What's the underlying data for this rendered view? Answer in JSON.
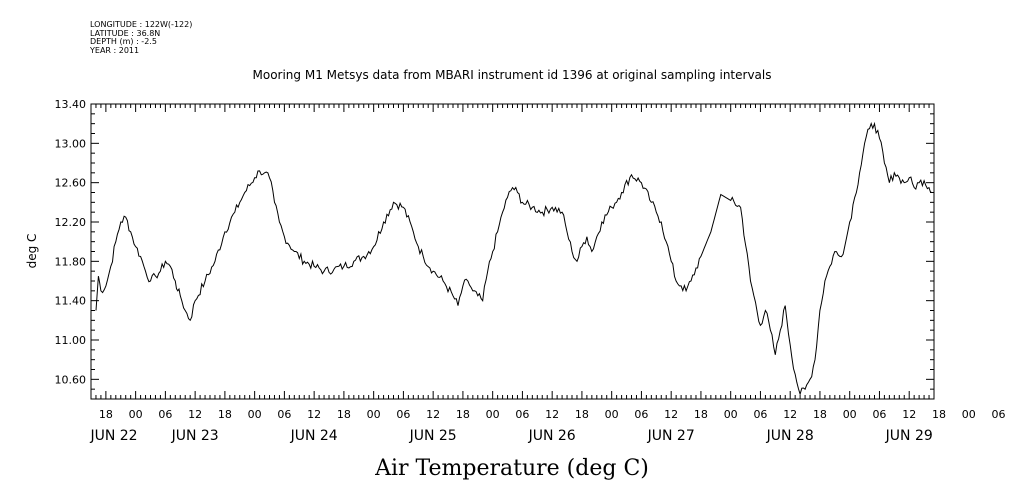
{
  "meta": {
    "longitude": "LONGITUDE : 122W(-122)",
    "latitude": "LATITUDE : 36.8N",
    "depth": "DEPTH (m) : -2.5",
    "year": "YEAR : 2011"
  },
  "chart_data": {
    "type": "line",
    "title": "Mooring M1 Metsys data from MBARI instrument id 1396 at original sampling intervals",
    "xlabel": "Air Temperature (deg C)",
    "ylabel": "deg C",
    "ylim": [
      10.4,
      13.4
    ],
    "yticks": [
      "10.60",
      "11.00",
      "11.40",
      "11.80",
      "12.20",
      "12.60",
      "13.00",
      "13.40"
    ],
    "xlim_hours": [
      15,
      185
    ],
    "hour_ticks": [
      "18",
      "00",
      "06",
      "12",
      "18",
      "00",
      "06",
      "12",
      "18",
      "00",
      "06",
      "12",
      "18",
      "00",
      "06",
      "12",
      "18",
      "00",
      "06",
      "12",
      "18",
      "00",
      "06",
      "12",
      "18",
      "00",
      "06",
      "12",
      "18",
      "00",
      "06",
      "12"
    ],
    "date_labels": [
      "JUN 22",
      "JUN 23",
      "JUN 24",
      "JUN 25",
      "JUN 26",
      "JUN 27",
      "JUN 28",
      "JUN 29"
    ],
    "grid": false,
    "series": [
      {
        "color": "#000000",
        "x": [
          16,
          16.5,
          17,
          18,
          19,
          20,
          21,
          22,
          23,
          24,
          25,
          26,
          27,
          28,
          29,
          30,
          31,
          32,
          32.5,
          33,
          34,
          35,
          36,
          38,
          40,
          42,
          44,
          45,
          46,
          48,
          49,
          50,
          51,
          52,
          53,
          54,
          56,
          58,
          60,
          62,
          64,
          66,
          68,
          70,
          72,
          74,
          76,
          78,
          80,
          81,
          82,
          84,
          86,
          88,
          89,
          90,
          91,
          92,
          93,
          94,
          95,
          96,
          97,
          98,
          99,
          100,
          101,
          102,
          104,
          106,
          108,
          110,
          111,
          112,
          113,
          114,
          115,
          116,
          118,
          120,
          122,
          124,
          126,
          128,
          129,
          130,
          131,
          132,
          133,
          134,
          135,
          136,
          138,
          140,
          142,
          144,
          146,
          148,
          150,
          151,
          152,
          153,
          154,
          155,
          156,
          157,
          158,
          159,
          160,
          161,
          162,
          163,
          164,
          165,
          166,
          167,
          168,
          169,
          170,
          171,
          172,
          173,
          174,
          175,
          176,
          177,
          178,
          179,
          180,
          181,
          182,
          183,
          184,
          184.5
        ],
        "y": [
          11.3,
          11.65,
          11.5,
          11.55,
          11.75,
          12.0,
          12.2,
          12.25,
          12.1,
          11.95,
          11.85,
          11.7,
          11.6,
          11.65,
          11.7,
          11.8,
          11.75,
          11.6,
          11.5,
          11.45,
          11.3,
          11.2,
          11.4,
          11.6,
          11.8,
          12.1,
          12.3,
          12.4,
          12.5,
          12.65,
          12.72,
          12.7,
          12.65,
          12.4,
          12.2,
          12.05,
          11.9,
          11.8,
          11.75,
          11.7,
          11.72,
          11.75,
          11.8,
          11.85,
          11.95,
          12.2,
          12.4,
          12.35,
          12.1,
          11.95,
          11.85,
          11.7,
          11.6,
          11.45,
          11.35,
          11.55,
          11.6,
          11.5,
          11.45,
          11.4,
          11.7,
          11.9,
          12.1,
          12.3,
          12.45,
          12.55,
          12.5,
          12.4,
          12.35,
          12.3,
          12.35,
          12.3,
          12.1,
          11.9,
          11.8,
          11.95,
          12.05,
          11.9,
          12.2,
          12.35,
          12.5,
          12.68,
          12.6,
          12.4,
          12.3,
          12.2,
          12.0,
          11.8,
          11.6,
          11.55,
          11.5,
          11.6,
          11.85,
          12.1,
          12.48,
          12.42,
          12.35,
          11.6,
          11.15,
          11.3,
          11.1,
          10.85,
          11.1,
          11.35,
          10.95,
          10.65,
          10.45,
          10.5,
          10.6,
          10.8,
          11.3,
          11.6,
          11.75,
          11.9,
          11.85,
          11.95,
          12.2,
          12.45,
          12.7,
          13.0,
          13.15,
          13.2,
          13.05,
          12.8,
          12.6,
          12.7,
          12.65,
          12.6,
          12.65,
          12.55,
          12.6,
          12.62,
          12.55,
          12.5
        ]
      }
    ]
  }
}
